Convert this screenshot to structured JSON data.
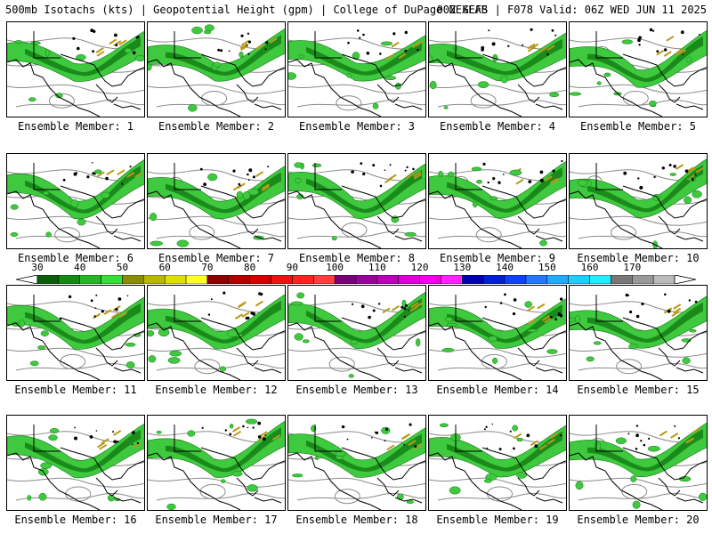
{
  "header": {
    "left": "500mb Isotachs (kts) | Geopotential Height (gpm) | College of DuPage NEXLAB",
    "right": "00Z GEFS | F078 Valid: 06Z WED JUN 11 2025"
  },
  "panel_label_prefix": "Ensemble Member: ",
  "members": [
    "1",
    "2",
    "3",
    "4",
    "5",
    "6",
    "7",
    "8",
    "9",
    "10",
    "11",
    "12",
    "13",
    "14",
    "15",
    "16",
    "17",
    "18",
    "19",
    "20"
  ],
  "colorbar": {
    "labels": [
      "30",
      "40",
      "50",
      "60",
      "70",
      "80",
      "90",
      "100",
      "110",
      "120",
      "130",
      "140",
      "150",
      "160",
      "170"
    ],
    "colors": [
      "#0b5e0b",
      "#138a13",
      "#22b822",
      "#33e033",
      "#8c8c00",
      "#b8b800",
      "#e0e000",
      "#ffff22",
      "#8c0000",
      "#b00000",
      "#d00000",
      "#f01010",
      "#ff2020",
      "#ff4040",
      "#7a007a",
      "#9a009a",
      "#ba00ba",
      "#da00da",
      "#ee00ee",
      "#ff22ff",
      "#0000aa",
      "#0022cc",
      "#1144ee",
      "#2277ff",
      "#22aaff",
      "#22ccff",
      "#22eeff",
      "#777777",
      "#999999",
      "#bbbbbb"
    ]
  },
  "map_colors": {
    "jet_light": "#3ec93e",
    "jet_dark": "#127a12",
    "jet_core": "#b89a1a",
    "height_contour": "#8a8a8a",
    "coast": "#000000"
  }
}
